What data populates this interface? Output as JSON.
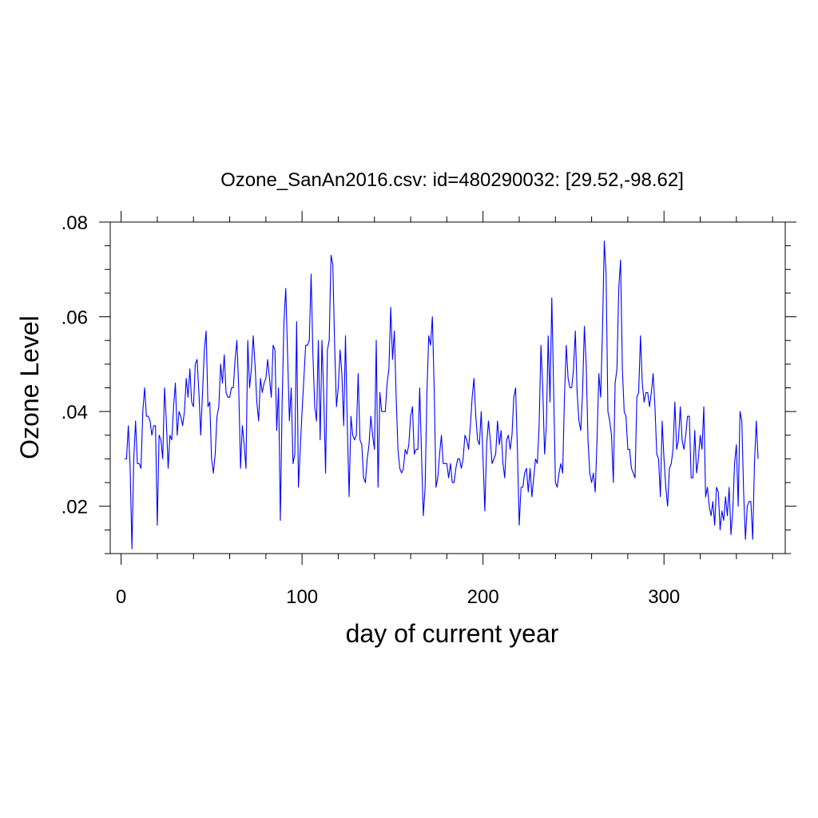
{
  "chart_data": {
    "type": "line",
    "title": "Ozone_SanAn2016.csv: id=480290032: [29.52,-98.62]",
    "xlabel": "day of current year",
    "ylabel": "Ozone Level",
    "xlim": [
      -6,
      367
    ],
    "ylim": [
      0.01,
      0.08
    ],
    "x_ticks": [
      0,
      100,
      200,
      300
    ],
    "x_tick_labels": [
      "0",
      "100",
      "200",
      "300"
    ],
    "y_ticks": [
      0.02,
      0.04,
      0.06,
      0.08
    ],
    "y_tick_labels": [
      ".02",
      ".04",
      ".06",
      ".08"
    ],
    "grid": false,
    "series": [
      {
        "color": "#0000ff",
        "x_start": 2,
        "x_step": 1,
        "values": [
          0.03,
          0.03,
          0.037,
          0.028,
          0.011,
          0.03,
          0.038,
          0.029,
          0.029,
          0.028,
          0.04,
          0.045,
          0.039,
          0.039,
          0.038,
          0.035,
          0.037,
          0.037,
          0.016,
          0.035,
          0.034,
          0.03,
          0.045,
          0.038,
          0.028,
          0.035,
          0.034,
          0.041,
          0.046,
          0.035,
          0.04,
          0.039,
          0.037,
          0.04,
          0.047,
          0.043,
          0.049,
          0.042,
          0.041,
          0.05,
          0.051,
          0.044,
          0.035,
          0.044,
          0.053,
          0.057,
          0.041,
          0.042,
          0.03,
          0.027,
          0.031,
          0.039,
          0.041,
          0.05,
          0.046,
          0.052,
          0.044,
          0.043,
          0.043,
          0.045,
          0.045,
          0.051,
          0.055,
          0.045,
          0.028,
          0.037,
          0.033,
          0.028,
          0.055,
          0.045,
          0.049,
          0.056,
          0.05,
          0.042,
          0.038,
          0.047,
          0.044,
          0.046,
          0.047,
          0.051,
          0.047,
          0.043,
          0.054,
          0.053,
          0.036,
          0.045,
          0.017,
          0.042,
          0.059,
          0.066,
          0.052,
          0.038,
          0.045,
          0.029,
          0.031,
          0.059,
          0.024,
          0.032,
          0.04,
          0.047,
          0.054,
          0.054,
          0.055,
          0.069,
          0.052,
          0.041,
          0.038,
          0.055,
          0.034,
          0.055,
          0.043,
          0.027,
          0.053,
          0.055,
          0.073,
          0.071,
          0.054,
          0.041,
          0.045,
          0.053,
          0.048,
          0.037,
          0.056,
          0.037,
          0.022,
          0.039,
          0.035,
          0.034,
          0.035,
          0.048,
          0.034,
          0.033,
          0.026,
          0.025,
          0.03,
          0.033,
          0.039,
          0.035,
          0.032,
          0.055,
          0.024,
          0.044,
          0.04,
          0.04,
          0.04,
          0.046,
          0.049,
          0.062,
          0.051,
          0.057,
          0.043,
          0.032,
          0.028,
          0.027,
          0.028,
          0.032,
          0.031,
          0.033,
          0.039,
          0.041,
          0.031,
          0.032,
          0.032,
          0.045,
          0.031,
          0.018,
          0.024,
          0.044,
          0.056,
          0.054,
          0.06,
          0.045,
          0.024,
          0.026,
          0.031,
          0.035,
          0.029,
          0.029,
          0.029,
          0.026,
          0.029,
          0.025,
          0.025,
          0.028,
          0.03,
          0.03,
          0.028,
          0.03,
          0.035,
          0.034,
          0.032,
          0.037,
          0.043,
          0.047,
          0.039,
          0.034,
          0.033,
          0.04,
          0.03,
          0.019,
          0.033,
          0.038,
          0.034,
          0.029,
          0.03,
          0.031,
          0.038,
          0.033,
          0.036,
          0.029,
          0.026,
          0.034,
          0.035,
          0.032,
          0.035,
          0.043,
          0.045,
          0.032,
          0.016,
          0.024,
          0.024,
          0.027,
          0.028,
          0.023,
          0.028,
          0.022,
          0.026,
          0.03,
          0.029,
          0.037,
          0.054,
          0.045,
          0.031,
          0.037,
          0.056,
          0.042,
          0.064,
          0.045,
          0.025,
          0.024,
          0.027,
          0.029,
          0.027,
          0.043,
          0.054,
          0.047,
          0.045,
          0.045,
          0.049,
          0.057,
          0.044,
          0.038,
          0.036,
          0.044,
          0.058,
          0.05,
          0.034,
          0.027,
          0.025,
          0.027,
          0.023,
          0.034,
          0.048,
          0.043,
          0.057,
          0.076,
          0.069,
          0.04,
          0.038,
          0.035,
          0.025,
          0.046,
          0.049,
          0.066,
          0.072,
          0.049,
          0.04,
          0.039,
          0.032,
          0.032,
          0.028,
          0.027,
          0.026,
          0.043,
          0.044,
          0.056,
          0.046,
          0.042,
          0.044,
          0.044,
          0.041,
          0.044,
          0.048,
          0.041,
          0.031,
          0.03,
          0.022,
          0.038,
          0.03,
          0.024,
          0.02,
          0.028,
          0.029,
          0.032,
          0.042,
          0.032,
          0.034,
          0.041,
          0.034,
          0.032,
          0.035,
          0.039,
          0.039,
          0.026,
          0.026,
          0.036,
          0.027,
          0.03,
          0.035,
          0.032,
          0.041,
          0.022,
          0.024,
          0.02,
          0.018,
          0.021,
          0.016,
          0.024,
          0.023,
          0.015,
          0.019,
          0.017,
          0.022,
          0.018,
          0.024,
          0.014,
          0.019,
          0.029,
          0.033,
          0.02,
          0.04,
          0.038,
          0.023,
          0.013,
          0.02,
          0.021,
          0.021,
          0.013,
          0.029,
          0.038,
          0.03
        ]
      }
    ]
  }
}
